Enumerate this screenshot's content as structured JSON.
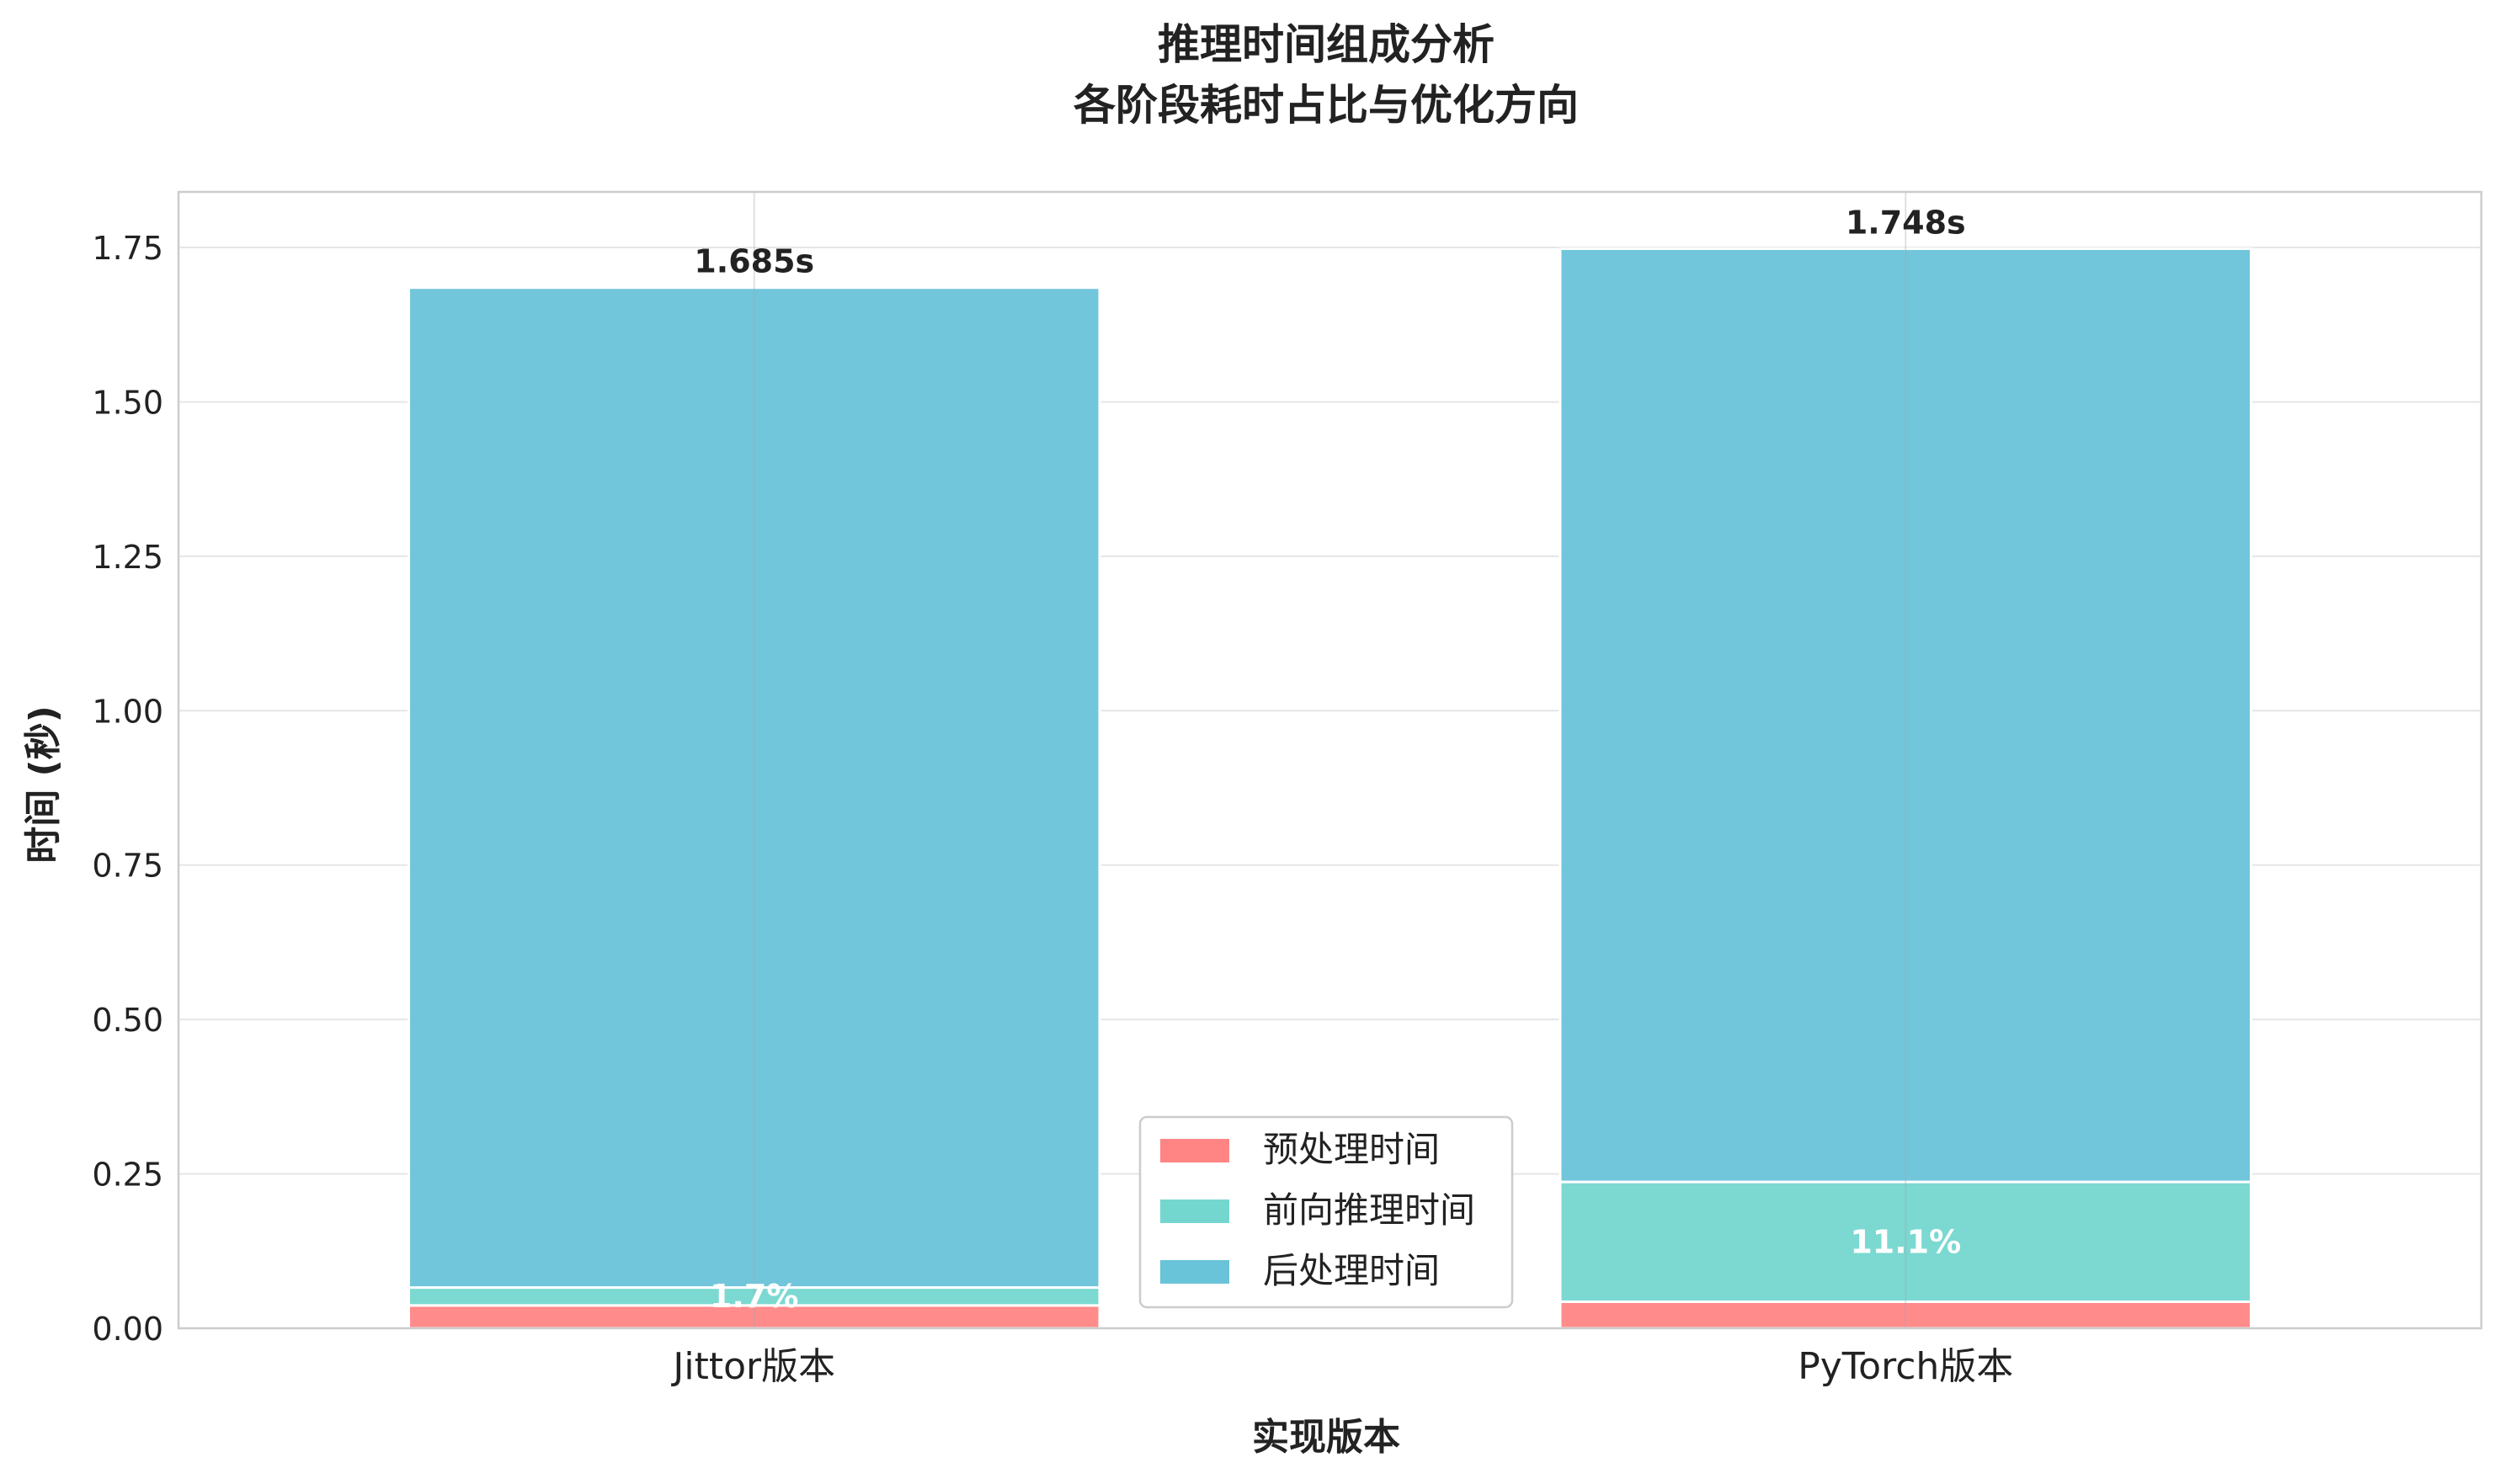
{
  "chart_data": {
    "type": "bar",
    "stacked": true,
    "title": "推理时间组成分析",
    "subtitle": "各阶段耗时占比与优化方向",
    "xlabel": "实现版本",
    "ylabel": "时间 (秒)",
    "categories": [
      "Jittor版本",
      "PyTorch版本"
    ],
    "series": [
      {
        "name": "预处理时间",
        "color": "#FF8585",
        "values": [
          0.037,
          0.043
        ]
      },
      {
        "name": "前向推理时间",
        "color": "#74D7CF",
        "values": [
          0.029,
          0.194
        ]
      },
      {
        "name": "后处理时间",
        "color": "#69C3D9",
        "values": [
          1.619,
          1.511
        ]
      }
    ],
    "totals": [
      "1.685s",
      "1.748s"
    ],
    "pct_labels": [
      "1.7%",
      "11.1%"
    ],
    "pct_series_index": 1,
    "ylim": [
      0,
      1.84
    ],
    "yticks": [
      0.0,
      0.25,
      0.5,
      0.75,
      1.0,
      1.25,
      1.5,
      1.75
    ],
    "ytick_labels": [
      "0.00",
      "0.25",
      "0.50",
      "0.75",
      "1.00",
      "1.25",
      "1.50",
      "1.75"
    ],
    "grid": true,
    "legend_position": "bottom-center"
  }
}
